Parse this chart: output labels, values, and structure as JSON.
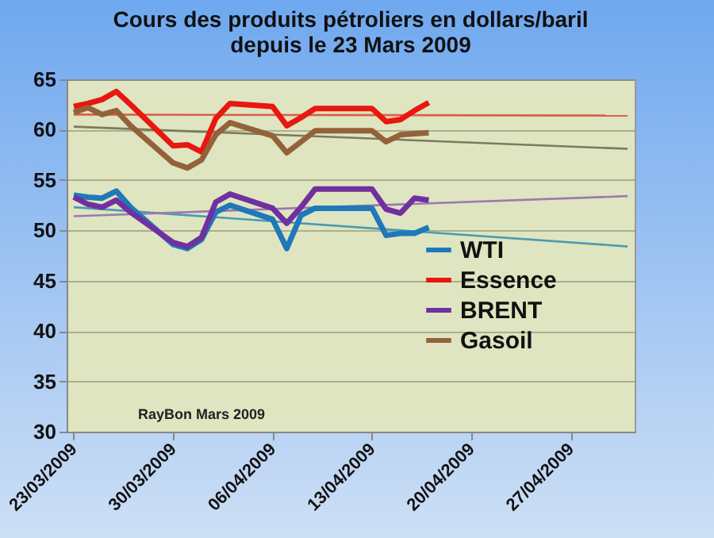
{
  "chart_data": {
    "type": "line",
    "title": "Cours des produits pétroliers en dollars/baril depuis le 23 Mars 2009",
    "x": [
      "2009-03-23",
      "2009-03-24",
      "2009-03-25",
      "2009-03-26",
      "2009-03-27",
      "2009-03-30",
      "2009-03-31",
      "2009-04-01",
      "2009-04-02",
      "2009-04-03",
      "2009-04-06",
      "2009-04-07",
      "2009-04-08",
      "2009-04-09",
      "2009-04-13",
      "2009-04-14",
      "2009-04-15",
      "2009-04-16",
      "2009-04-17"
    ],
    "series": [
      {
        "name": "WTI",
        "color": "#1f78b8",
        "values": [
          53.5,
          53.3,
          53.2,
          53.9,
          52.3,
          48.6,
          48.2,
          49.1,
          51.8,
          52.5,
          51.1,
          48.2,
          51.5,
          52.2,
          52.2,
          49.5,
          49.7,
          49.7,
          50.3
        ]
      },
      {
        "name": "Essence",
        "color": "#e8170f",
        "values": [
          62.3,
          62.6,
          63.0,
          63.8,
          62.5,
          58.4,
          58.5,
          57.8,
          61.1,
          62.6,
          62.3,
          60.4,
          61.2,
          62.1,
          62.1,
          60.8,
          61.0,
          61.9,
          62.7
        ]
      },
      {
        "name": "BRENT",
        "color": "#7030a0",
        "values": [
          53.3,
          52.6,
          52.3,
          53.0,
          51.8,
          48.8,
          48.4,
          49.3,
          52.8,
          53.6,
          52.2,
          50.7,
          52.3,
          54.1,
          54.1,
          52.1,
          51.7,
          53.2,
          53.0
        ]
      },
      {
        "name": "Gasoil",
        "color": "#94623a",
        "values": [
          61.7,
          62.2,
          61.5,
          61.9,
          60.4,
          56.7,
          56.2,
          57.0,
          59.5,
          60.7,
          59.4,
          57.7,
          58.8,
          59.9,
          59.9,
          58.8,
          59.5,
          59.6,
          59.7
        ]
      },
      {
        "color": "#4a9bb5",
        "x": [
          "2009-03-23",
          "2009-05-01"
        ],
        "values": [
          52.3,
          48.4
        ]
      },
      {
        "color": "#d9604a",
        "x": [
          "2009-03-23",
          "2009-05-01"
        ],
        "values": [
          61.5,
          61.4
        ]
      },
      {
        "color": "#9a7bb0",
        "x": [
          "2009-03-23",
          "2009-05-01"
        ],
        "values": [
          51.4,
          53.4
        ]
      },
      {
        "color": "#7b7a5a",
        "x": [
          "2009-03-23",
          "2009-05-01"
        ],
        "values": [
          60.3,
          58.1
        ]
      }
    ],
    "xlim": [
      "2009-03-22T12:00",
      "2009-05-01T12:00"
    ],
    "xticks": [
      {
        "value": "2009-03-23",
        "label": "23/03/2009"
      },
      {
        "value": "2009-03-30",
        "label": "30/03/2009"
      },
      {
        "value": "2009-04-06",
        "label": "06/04/2009"
      },
      {
        "value": "2009-04-13",
        "label": "13/04/2009"
      },
      {
        "value": "2009-04-20",
        "label": "20/04/2009"
      },
      {
        "value": "2009-04-27",
        "label": "27/04/2009"
      }
    ],
    "ylim": [
      30,
      65
    ],
    "yticks": [
      30,
      35,
      40,
      45,
      50,
      55,
      60,
      65
    ],
    "grid": "y",
    "legend": "bottom right",
    "annotations": [
      "RayBon Mars 2009"
    ]
  }
}
